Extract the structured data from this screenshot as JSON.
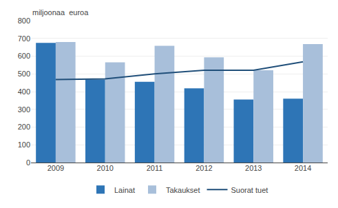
{
  "chart_data": {
    "type": "bar",
    "categories": [
      "2009",
      "2010",
      "2011",
      "2012",
      "2013",
      "2014"
    ],
    "series": [
      {
        "name": "Lainat",
        "color": "#2E75B6",
        "values": [
          675,
          468,
          455,
          418,
          355,
          360
        ]
      },
      {
        "name": "Takaukset",
        "color": "#A8BFDA",
        "values": [
          680,
          565,
          658,
          593,
          520,
          668
        ]
      },
      {
        "name": "Suorat tuet",
        "type": "line",
        "color": "#1F4E79",
        "values": [
          468,
          472,
          500,
          520,
          520,
          568
        ]
      }
    ],
    "ylabel": "miljoonaa  euroa",
    "ylim": [
      0,
      800
    ],
    "yticks": [
      0,
      100,
      200,
      300,
      400,
      500,
      600,
      700,
      800
    ],
    "grid": true,
    "legend": "bottom"
  }
}
